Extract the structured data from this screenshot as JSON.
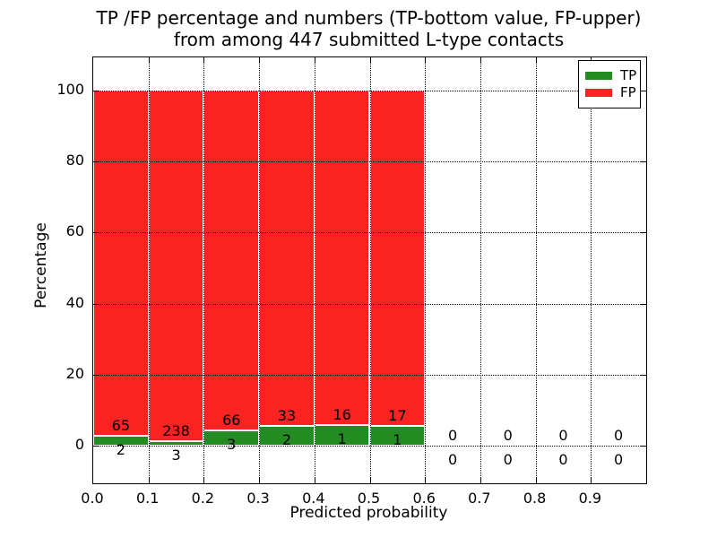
{
  "header": {
    "title_line1": "TP /FP percentage and numbers (TP-bottom value, FP-upper)",
    "title_line2": "from among 447 submitted L-type contacts"
  },
  "axes": {
    "xlabel": "Predicted probability",
    "ylabel": "Percentage"
  },
  "legend": {
    "position": "upper right",
    "items": [
      {
        "label": "TP",
        "color": "#228b22"
      },
      {
        "label": "FP",
        "color": "#fb2222"
      }
    ]
  },
  "chart_data": {
    "type": "bar",
    "stacked": true,
    "bar_mode": "percent-stacked: each non-empty 0.1-wide bin sums to 100%",
    "title": "TP /FP percentage and numbers (TP-bottom value, FP-upper)\nfrom among 447 submitted L-type contacts",
    "xlabel": "Predicted probability",
    "ylabel": "Percentage",
    "total_submitted_contacts": 447,
    "bins": {
      "start": 0.0,
      "width": 0.1,
      "count": 10
    },
    "categories": [
      "0.0-0.1",
      "0.1-0.2",
      "0.2-0.3",
      "0.3-0.4",
      "0.4-0.5",
      "0.5-0.6",
      "0.6-0.7",
      "0.7-0.8",
      "0.8-0.9",
      "0.9-1.0"
    ],
    "series": [
      {
        "name": "TP",
        "color": "#228b22",
        "counts": [
          2,
          3,
          3,
          2,
          1,
          1,
          0,
          0,
          0,
          0
        ]
      },
      {
        "name": "FP",
        "color": "#fb2222",
        "counts": [
          65,
          238,
          66,
          33,
          16,
          17,
          0,
          0,
          0,
          0
        ]
      }
    ],
    "tp_percent": [
      2.99,
      1.24,
      4.35,
      5.71,
      5.88,
      5.56,
      0,
      0,
      0,
      0
    ],
    "fp_percent": [
      97.01,
      98.76,
      95.65,
      94.29,
      94.12,
      94.44,
      0,
      0,
      0,
      0
    ],
    "xtick_labels": [
      "0.0",
      "0.1",
      "0.2",
      "0.3",
      "0.4",
      "0.5",
      "0.6",
      "0.7",
      "0.8",
      "0.9"
    ],
    "yticks": [
      0,
      20,
      40,
      60,
      80,
      100
    ],
    "xlim": [
      0.0,
      1.0
    ],
    "ylim": [
      -10.5,
      109.3
    ],
    "grid": "dotted, both axes, drawn over bars",
    "bar_edge_color": "#ffffff",
    "legend_position": "upper right"
  }
}
